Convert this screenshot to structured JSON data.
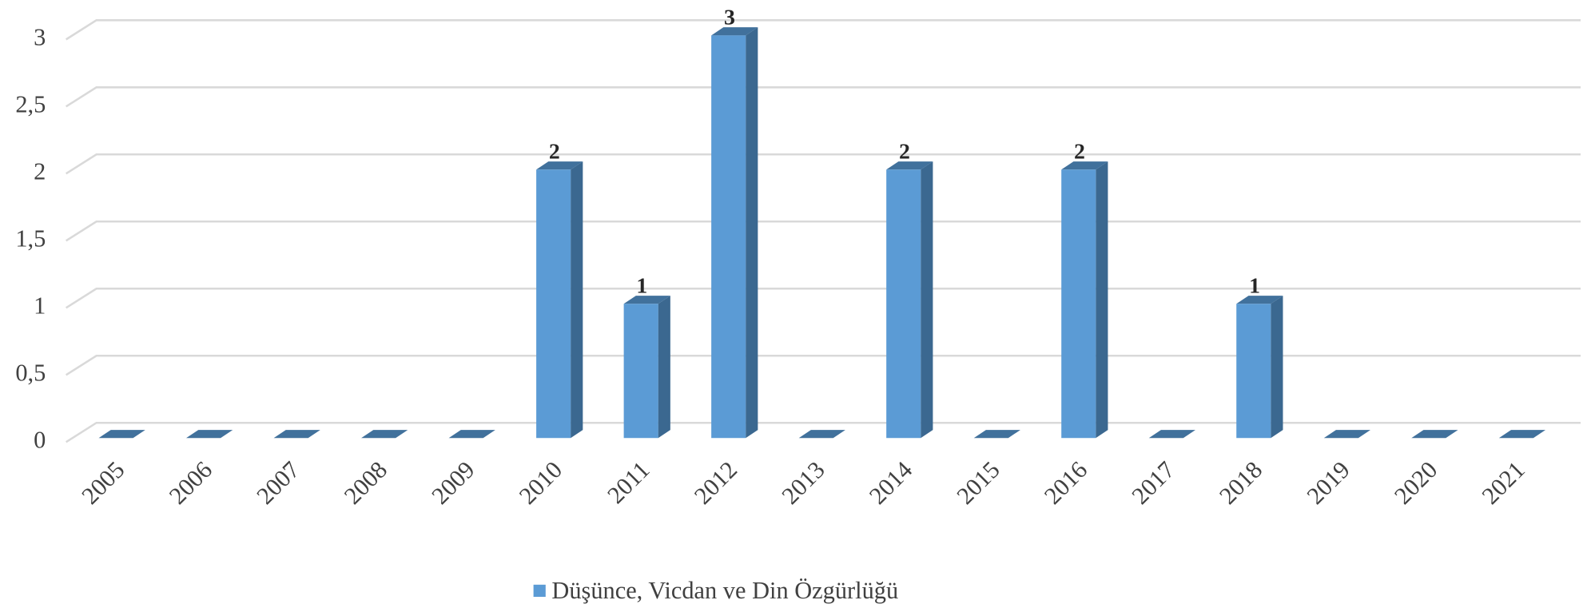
{
  "chart_data": {
    "type": "bar",
    "categories": [
      "2005",
      "2006",
      "2007",
      "2008",
      "2009",
      "2010",
      "2011",
      "2012",
      "2013",
      "2014",
      "2015",
      "2016",
      "2017",
      "2018",
      "2019",
      "2020",
      "2021"
    ],
    "series": [
      {
        "name": "Düşünce, Vicdan ve Din Özgürlüğü",
        "color": "#5b9bd5",
        "values": [
          0,
          0,
          0,
          0,
          0,
          2,
          1,
          3,
          0,
          2,
          0,
          2,
          0,
          1,
          0,
          0,
          0
        ]
      }
    ],
    "ylim": [
      0,
      3
    ],
    "yticks": [
      0,
      {
        "value": 0.5,
        "label": "0,5"
      },
      1,
      {
        "value": 1.5,
        "label": "1,5"
      },
      2,
      {
        "value": 2.5,
        "label": "2,5"
      },
      3
    ],
    "grid": true,
    "legend": "bottom"
  }
}
